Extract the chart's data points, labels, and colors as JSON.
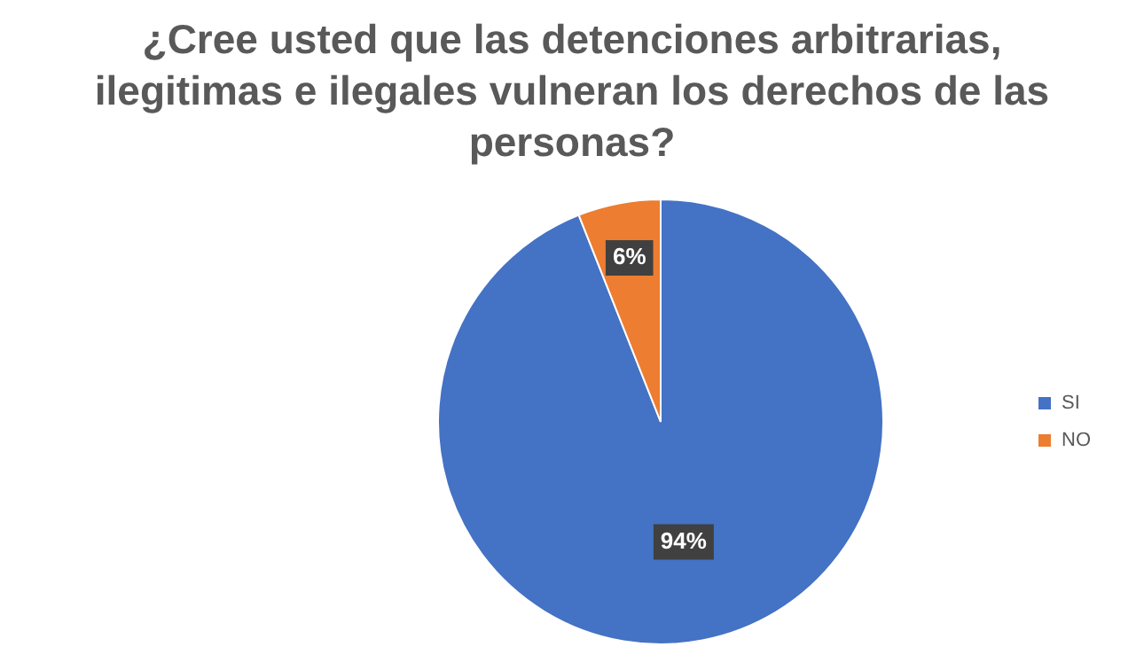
{
  "chart_data": {
    "type": "pie",
    "title": "¿Cree usted que las detenciones arbitrarias, ilegitimas e ilegales vulneran los derechos de las personas?",
    "categories": [
      "SI",
      "NO"
    ],
    "values": [
      94,
      6
    ],
    "colors": [
      "#4472c4",
      "#ed7d31"
    ],
    "value_labels": [
      "94%",
      "6%"
    ],
    "legend": "right"
  }
}
